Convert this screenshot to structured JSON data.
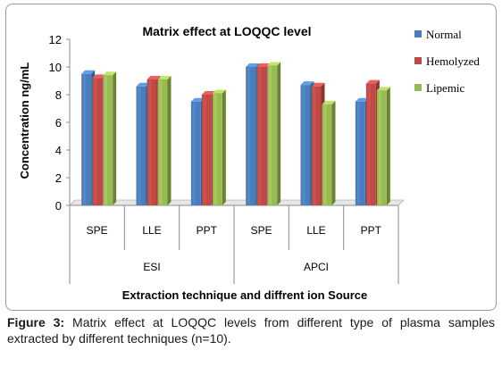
{
  "chart_data": {
    "type": "bar",
    "title": "Matrix effect at LOQQC level",
    "ylabel": "Concentration ng/mL",
    "xlabel": "Extraction technique and diffrent ion Source",
    "ylim": [
      0,
      12
    ],
    "yticks": [
      "0",
      "2",
      "4",
      "6",
      "8",
      "10",
      "12"
    ],
    "categories": [
      "SPE",
      "LLE",
      "PPT",
      "SPE",
      "LLE",
      "PPT"
    ],
    "groups": [
      {
        "label": "ESI",
        "categories": [
          "SPE",
          "LLE",
          "PPT"
        ]
      },
      {
        "label": "APCI",
        "categories": [
          "SPE",
          "LLE",
          "PPT"
        ]
      }
    ],
    "series": [
      {
        "name": "Normal",
        "color": "#4a7ebb",
        "values": [
          9.5,
          8.6,
          7.5,
          10.0,
          8.7,
          7.5
        ]
      },
      {
        "name": "Hemolyzed",
        "color": "#be4b48",
        "values": [
          9.2,
          9.1,
          8.0,
          10.0,
          8.6,
          8.8
        ]
      },
      {
        "name": "Lipemic",
        "color": "#98b954",
        "values": [
          9.4,
          9.1,
          8.1,
          10.1,
          7.3,
          8.3
        ]
      }
    ],
    "legend_position": "right",
    "grid": false
  },
  "caption": {
    "label": "Figure 3:",
    "text": " Matrix effect at LOQQC levels from different type of plasma samples extracted by different techniques (n=10)."
  }
}
